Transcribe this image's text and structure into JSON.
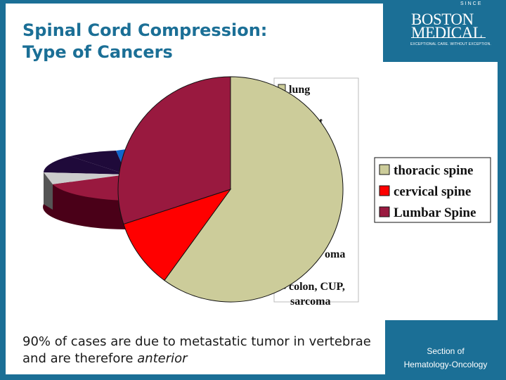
{
  "slide": {
    "title_line1": "Spinal Cord Compression:",
    "title_line2": "Type of Cancers",
    "logo_line1": "BOSTON",
    "logo_line2": "MEDICAL",
    "logo_arc": "SINCE",
    "logo_tagline": "EXCEPTIONAL CARE. WITHOUT EXCEPTION.",
    "body_text_main": "90% of cases are due to metastatic tumor in vertebrae and are therefore ",
    "body_text_emphasis": "anterior",
    "footer_line1": "Section of",
    "footer_line2": "Hematology-Oncology"
  },
  "behind_legend": {
    "labels": [
      "lung",
      "t",
      "oma",
      "colon, CUP,",
      "sarcoma"
    ]
  },
  "colors": {
    "brand_blue": "#1b6f96",
    "thoracic": "#cccc9a",
    "cervical": "#ff0000",
    "lumbar": "#99193f"
  },
  "chart_data": [
    {
      "type": "pie",
      "title": "",
      "labels": [
        "thoracic spine",
        "cervical spine",
        "Lumbar Spine"
      ],
      "values": [
        60,
        10,
        30
      ],
      "colors": [
        "#cccc9a",
        "#ff0000",
        "#99193f"
      ],
      "legend_position": "right"
    }
  ]
}
